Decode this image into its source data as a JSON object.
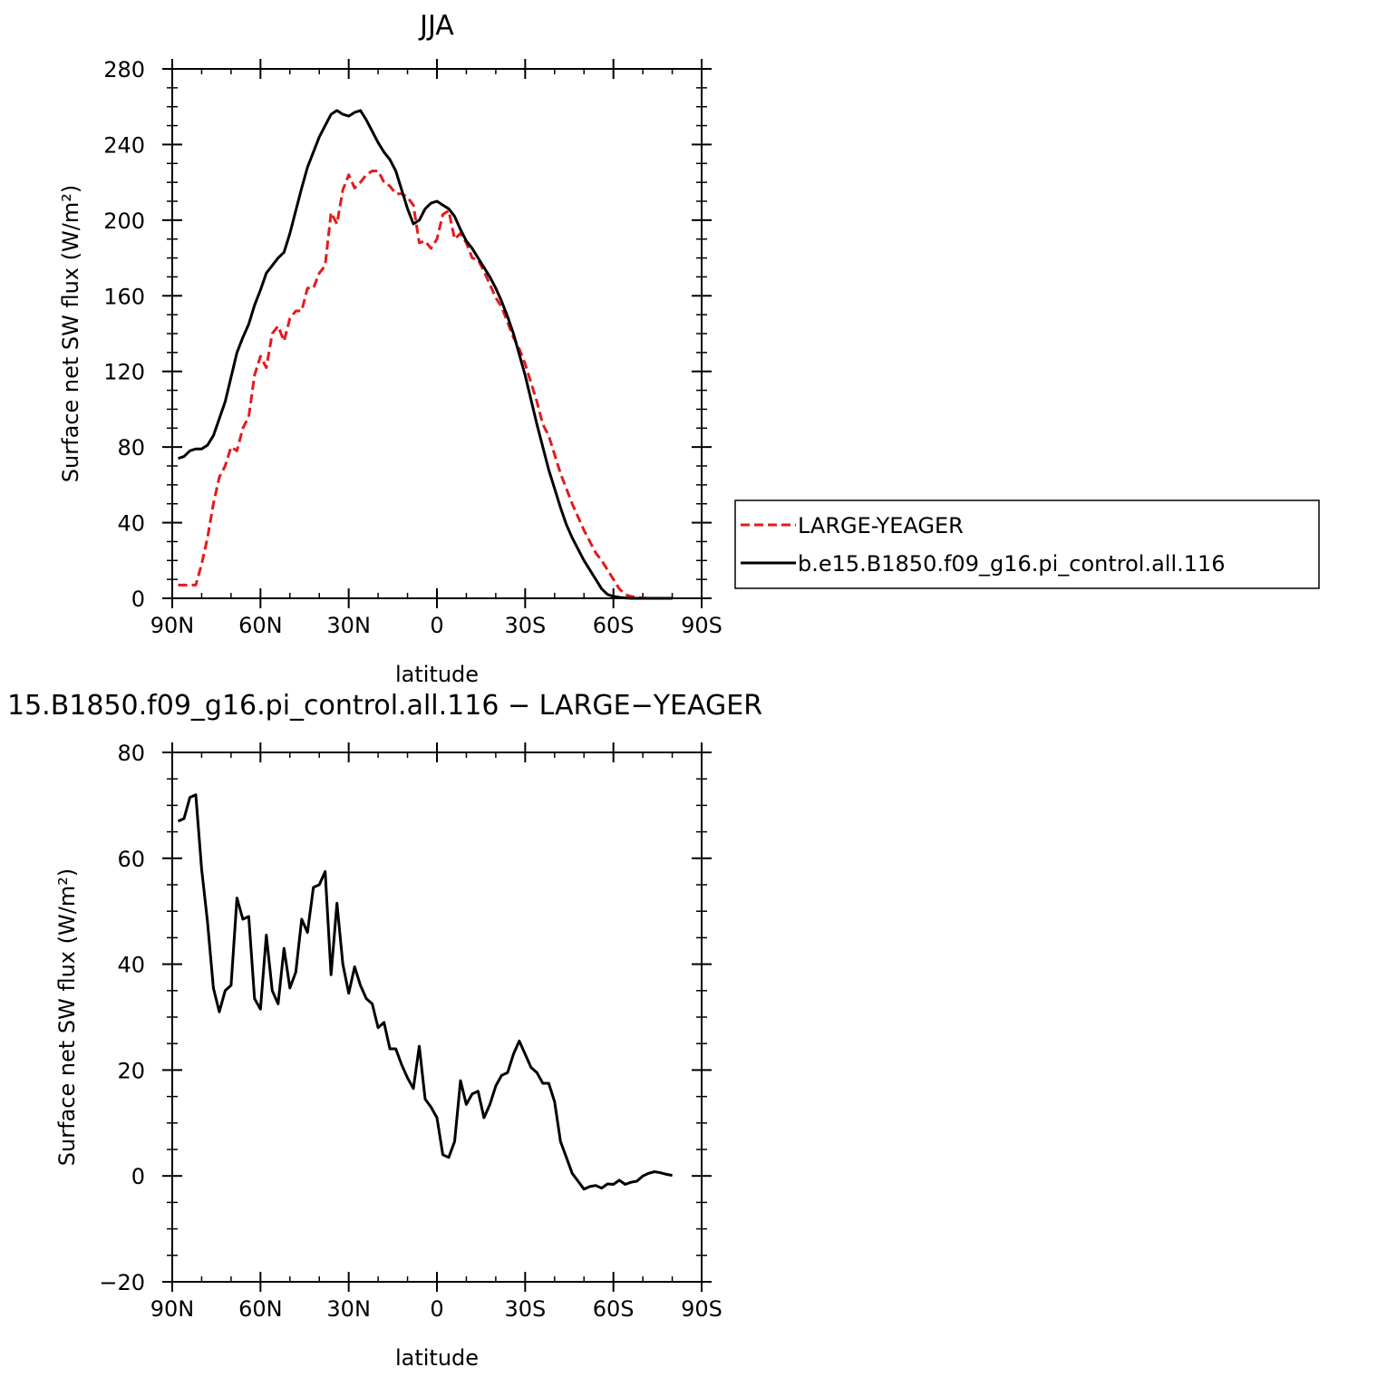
{
  "colors": {
    "large_yeager": "#e41a1c",
    "control": "#000000",
    "frame": "#000000"
  },
  "chart_data": [
    {
      "type": "line",
      "title": "JJA",
      "xlabel": "latitude",
      "ylabel": "Surface net SW flux (W/m²)",
      "xlim": [
        90,
        -90
      ],
      "ylim": [
        0,
        280
      ],
      "x_tick_values": [
        90,
        60,
        30,
        0,
        -30,
        -60,
        -90
      ],
      "x_tick_labels": [
        "90N",
        "60N",
        "30N",
        "0",
        "30S",
        "60S",
        "90S"
      ],
      "y_tick_values": [
        0,
        40,
        80,
        120,
        160,
        200,
        240,
        280
      ],
      "y_tick_labels": [
        "0",
        "40",
        "80",
        "120",
        "160",
        "200",
        "240",
        "280"
      ],
      "legend_position": "right",
      "series": [
        {
          "name": "LARGE-YEAGER",
          "style": "dashed",
          "color": "#e41a1c",
          "x": [
            88,
            86,
            84,
            82,
            80,
            78,
            76,
            74,
            72,
            70,
            68,
            66,
            64,
            62,
            60,
            58,
            56,
            54,
            52,
            50,
            48,
            46,
            44,
            42,
            40,
            38,
            36,
            34,
            32,
            30,
            28,
            26,
            24,
            22,
            20,
            18,
            16,
            14,
            12,
            10,
            8,
            6,
            4,
            2,
            0,
            -2,
            -4,
            -6,
            -8,
            -10,
            -12,
            -14,
            -16,
            -18,
            -20,
            -22,
            -24,
            -26,
            -28,
            -30,
            -32,
            -34,
            -36,
            -38,
            -40,
            -42,
            -44,
            -46,
            -48,
            -50,
            -52,
            -54,
            -56,
            -58,
            -60,
            -62,
            -64,
            -66,
            -68,
            -70,
            -72,
            -74,
            -76,
            -78,
            -80
          ],
          "values": [
            7,
            7,
            7,
            7,
            18,
            32,
            50,
            64,
            70,
            80,
            78,
            90,
            96,
            118,
            128,
            122,
            140,
            144,
            136,
            148,
            152,
            152,
            164,
            164,
            172,
            176,
            204,
            198,
            216,
            224,
            217,
            220,
            224,
            226,
            226,
            220,
            218,
            214,
            214,
            212,
            208,
            188,
            189,
            185,
            190,
            203,
            205,
            190,
            193,
            188,
            180,
            179,
            173,
            166,
            159,
            154,
            146,
            138,
            132,
            124,
            114,
            104,
            92,
            86,
            76,
            66,
            58,
            50,
            43,
            36,
            30,
            24,
            20,
            15,
            10,
            5,
            2,
            1,
            0.5,
            0.2,
            0,
            0,
            0,
            0,
            0
          ]
        },
        {
          "name": "b.e15.B1850.f09_g16.pi_control.all.116",
          "style": "solid",
          "color": "#000000",
          "x": [
            88,
            86,
            84,
            82,
            80,
            78,
            76,
            74,
            72,
            70,
            68,
            66,
            64,
            62,
            60,
            58,
            56,
            54,
            52,
            50,
            48,
            46,
            44,
            42,
            40,
            38,
            36,
            34,
            32,
            30,
            28,
            26,
            24,
            22,
            20,
            18,
            16,
            14,
            12,
            10,
            8,
            6,
            4,
            2,
            0,
            -2,
            -4,
            -6,
            -8,
            -10,
            -12,
            -14,
            -16,
            -18,
            -20,
            -22,
            -24,
            -26,
            -28,
            -30,
            -32,
            -34,
            -36,
            -38,
            -40,
            -42,
            -44,
            -46,
            -48,
            -50,
            -52,
            -54,
            -56,
            -58,
            -60,
            -62,
            -64,
            -66,
            -68,
            -70,
            -72,
            -74,
            -76,
            -78,
            -80
          ],
          "values": [
            74,
            75,
            78,
            79,
            79,
            81,
            86,
            95,
            104,
            117,
            130,
            138,
            145,
            155,
            163,
            172,
            176,
            180,
            183,
            193,
            205,
            217,
            228,
            236,
            244,
            250,
            256,
            258,
            256,
            255,
            257,
            258,
            253,
            247,
            241,
            236,
            232,
            226,
            216,
            206,
            198,
            200,
            206,
            209,
            210,
            208,
            206,
            202,
            195,
            189,
            185,
            180,
            175,
            170,
            164,
            157,
            149,
            140,
            129,
            118,
            105,
            92,
            80,
            68,
            58,
            48,
            39,
            32,
            26,
            20,
            15,
            10,
            5,
            2,
            1,
            0.5,
            0.2,
            0,
            0,
            0,
            0,
            0,
            0,
            0,
            0
          ]
        }
      ]
    },
    {
      "type": "line",
      "title": "15.B1850.f09_g16.pi_control.all.116 − LARGE−YEAGER",
      "xlabel": "latitude",
      "ylabel": "Surface net SW flux (W/m²)",
      "xlim": [
        90,
        -90
      ],
      "ylim": [
        -20,
        80
      ],
      "x_tick_values": [
        90,
        60,
        30,
        0,
        -30,
        -60,
        -90
      ],
      "x_tick_labels": [
        "90N",
        "60N",
        "30N",
        "0",
        "30S",
        "60S",
        "90S"
      ],
      "y_tick_values": [
        -20,
        0,
        20,
        40,
        60,
        80
      ],
      "y_tick_labels": [
        "−20",
        "0",
        "20",
        "40",
        "60",
        "80"
      ],
      "series": [
        {
          "style": "solid",
          "color": "#000000",
          "x": [
            88,
            86,
            84,
            82,
            80,
            78,
            76,
            74,
            72,
            70,
            68,
            66,
            64,
            62,
            60,
            58,
            56,
            54,
            52,
            50,
            48,
            46,
            44,
            42,
            40,
            38,
            36,
            34,
            32,
            30,
            28,
            26,
            24,
            22,
            20,
            18,
            16,
            14,
            12,
            10,
            8,
            6,
            4,
            2,
            0,
            -2,
            -4,
            -6,
            -8,
            -10,
            -12,
            -14,
            -16,
            -18,
            -20,
            -22,
            -24,
            -26,
            -28,
            -30,
            -32,
            -34,
            -36,
            -38,
            -40,
            -42,
            -44,
            -46,
            -48,
            -50,
            -52,
            -54,
            -56,
            -58,
            -60,
            -62,
            -64,
            -66,
            -68,
            -70,
            -72,
            -74,
            -76,
            -78,
            -80
          ],
          "values": [
            67,
            67.5,
            71.5,
            72,
            58,
            48,
            35.5,
            31,
            35,
            36,
            52.5,
            48.5,
            49,
            33.5,
            31.5,
            45.5,
            35,
            32.5,
            43,
            35.5,
            38.5,
            48.5,
            46,
            54.5,
            55,
            57.5,
            38,
            51.5,
            40,
            34.5,
            39.5,
            36,
            33.5,
            32.5,
            28,
            29,
            24,
            24,
            21,
            18.5,
            16.5,
            24.5,
            14.5,
            13,
            11,
            4,
            3.5,
            6.5,
            18,
            13.5,
            15.5,
            16,
            11,
            13.5,
            17,
            19,
            19.5,
            23,
            25.5,
            23,
            20.5,
            19.5,
            17.5,
            17.5,
            14,
            6.5,
            3.5,
            0.5,
            -1,
            -2.5,
            -2,
            -1.8,
            -2.3,
            -1.5,
            -1.6,
            -0.8,
            -1.6,
            -1.2,
            -1,
            0,
            0.5,
            0.8,
            0.6,
            0.3,
            0.1
          ]
        }
      ]
    }
  ]
}
